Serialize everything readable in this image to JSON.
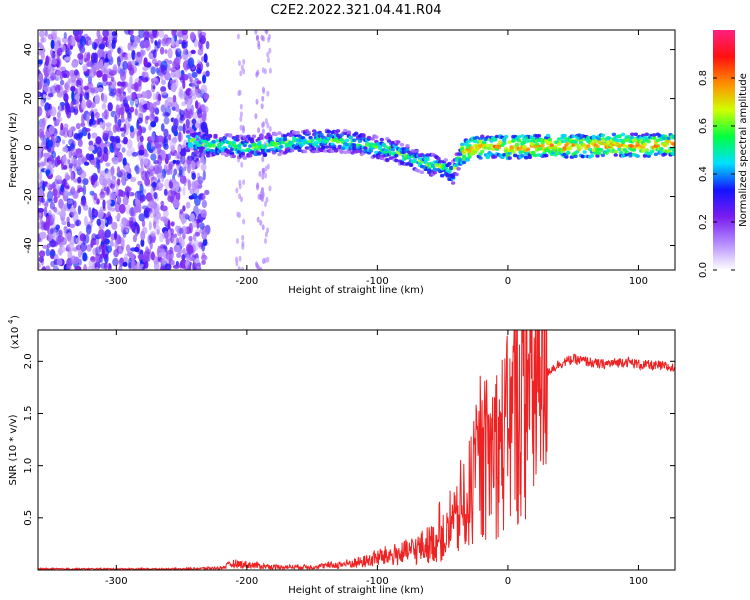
{
  "title": "C2E2.2022.321.04.41.R04",
  "chart_data": [
    {
      "type": "heatmap",
      "xlabel": "Height of straight line (km)",
      "ylabel": "Frequency (Hz)",
      "xlim": [
        -360,
        128
      ],
      "ylim": [
        -50,
        48
      ],
      "x_ticks": [
        -300,
        -200,
        -100,
        0,
        100
      ],
      "y_ticks": [
        -40,
        -20,
        0,
        20,
        40
      ],
      "colorbar": {
        "label": "Normalized spectral amplitude",
        "range": [
          0,
          1
        ],
        "ticks": [
          "0.0",
          "0.2",
          "0.4",
          "0.6",
          "0.8"
        ],
        "colors": [
          "#ffffff",
          "#b48cff",
          "#7a1cf0",
          "#1414ff",
          "#00e0ff",
          "#00ff40",
          "#d0ff00",
          "#ff8c00",
          "#ff1010",
          "#ff2080"
        ]
      },
      "noise_region_x": [
        -360,
        -230
      ],
      "ridge": {
        "x": [
          -245,
          -230,
          -215,
          -200,
          -185,
          -170,
          -155,
          -140,
          -125,
          -110,
          -100,
          -90,
          -80,
          -70,
          -60,
          -50,
          -42,
          -35,
          -25,
          -10,
          0,
          20,
          50,
          80,
          100,
          128
        ],
        "y": [
          3,
          1,
          1,
          0,
          1,
          2,
          2.5,
          3,
          2.5,
          1.5,
          0,
          -1,
          -3,
          -5,
          -7,
          -8,
          -10,
          -2,
          0,
          0.5,
          0,
          0.5,
          0.5,
          1,
          1,
          1
        ]
      }
    },
    {
      "type": "line",
      "xlabel": "Height of straight line (km)",
      "ylabel": "SNR (10 * v/v)",
      "y_scale_label": "(x10",
      "y_scale_exp": "4",
      "xlim": [
        -360,
        128
      ],
      "ylim": [
        0,
        2.3
      ],
      "x_ticks": [
        -300,
        -200,
        -100,
        0,
        100
      ],
      "y_ticks": [
        "0.5",
        "1.0",
        "1.5",
        "2.0"
      ],
      "line_color": "#ee2222",
      "series": [
        {
          "x": [
            -360,
            -300,
            -250,
            -220,
            -210,
            -200,
            -180,
            -150,
            -130,
            -110,
            -100,
            -90,
            -80,
            -70,
            -60,
            -50,
            -45,
            -40,
            -35,
            -30,
            -25,
            -20,
            -15,
            -10,
            -5,
            0,
            5,
            10,
            15,
            20,
            30,
            40,
            50,
            60,
            70,
            80,
            90,
            100,
            110,
            120,
            128
          ],
          "values": [
            0.01,
            0.01,
            0.01,
            0.02,
            0.06,
            0.05,
            0.03,
            0.03,
            0.05,
            0.08,
            0.12,
            0.14,
            0.16,
            0.2,
            0.25,
            0.3,
            0.35,
            0.45,
            0.55,
            0.7,
            0.9,
            1.0,
            1.1,
            1.15,
            1.2,
            1.3,
            1.5,
            1.6,
            1.7,
            1.75,
            1.9,
            1.98,
            2.02,
            2.0,
            1.97,
            1.98,
            2.0,
            1.97,
            1.96,
            1.95,
            1.93
          ]
        }
      ]
    }
  ]
}
